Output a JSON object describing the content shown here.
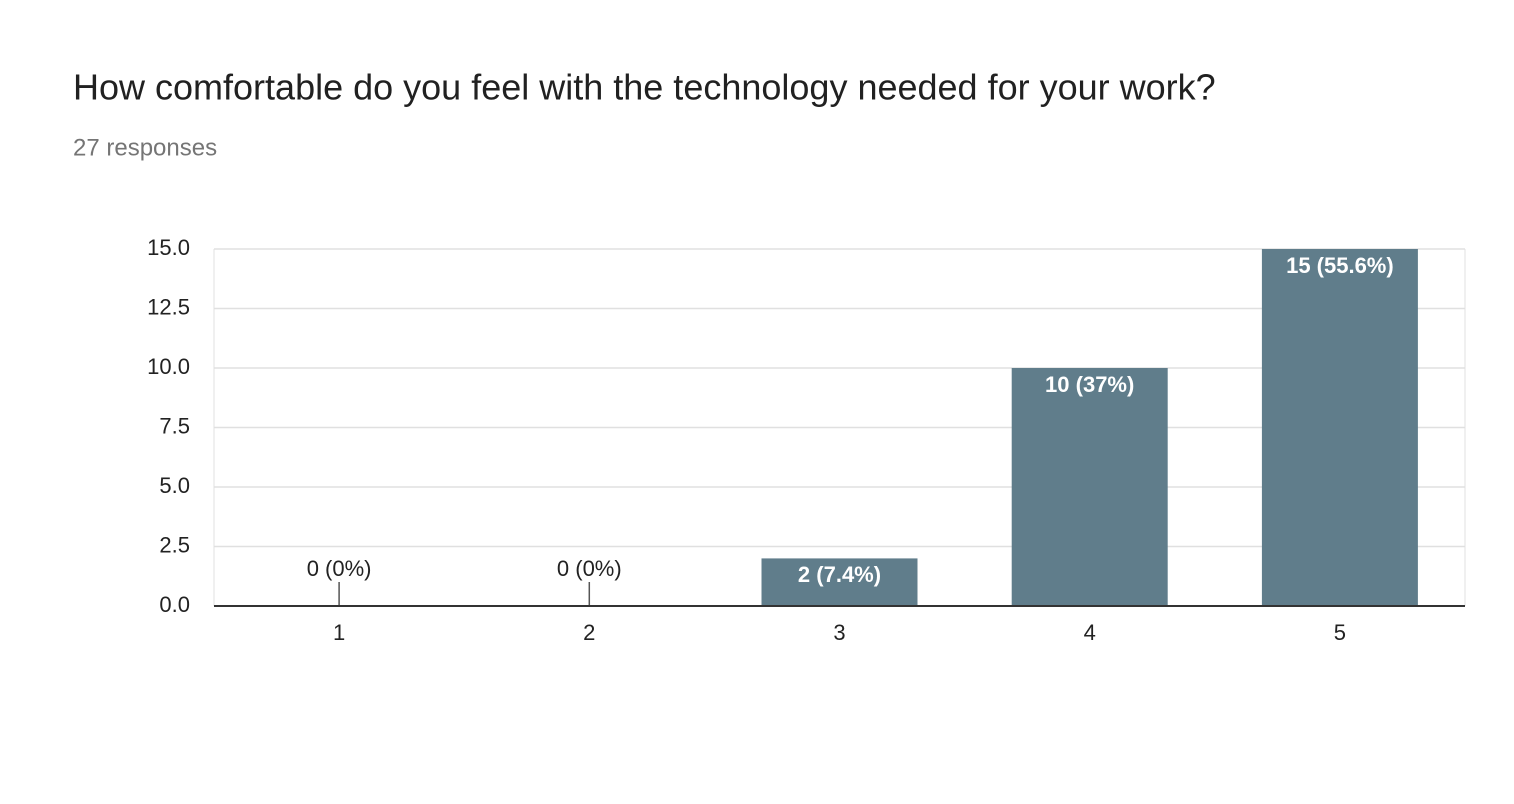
{
  "chart_data": {
    "type": "bar",
    "title": "How comfortable do you feel with the technology needed for your work?",
    "subtitle": "27 responses",
    "categories": [
      "1",
      "2",
      "3",
      "4",
      "5"
    ],
    "values": [
      0,
      0,
      2,
      10,
      15
    ],
    "value_labels": [
      "0 (0%)",
      "0 (0%)",
      "2 (7.4%)",
      "10 (37%)",
      "15 (55.6%)"
    ],
    "color": "#607d8b",
    "ylim": [
      0,
      15
    ],
    "yticks": [
      {
        "value": 0,
        "label": "0.0"
      },
      {
        "value": 2.5,
        "label": "2.5"
      },
      {
        "value": 5,
        "label": "5.0"
      },
      {
        "value": 7.5,
        "label": "7.5"
      },
      {
        "value": 10,
        "label": "10.0"
      },
      {
        "value": 12.5,
        "label": "12.5"
      },
      {
        "value": 15,
        "label": "15.0"
      }
    ],
    "grid": true
  }
}
